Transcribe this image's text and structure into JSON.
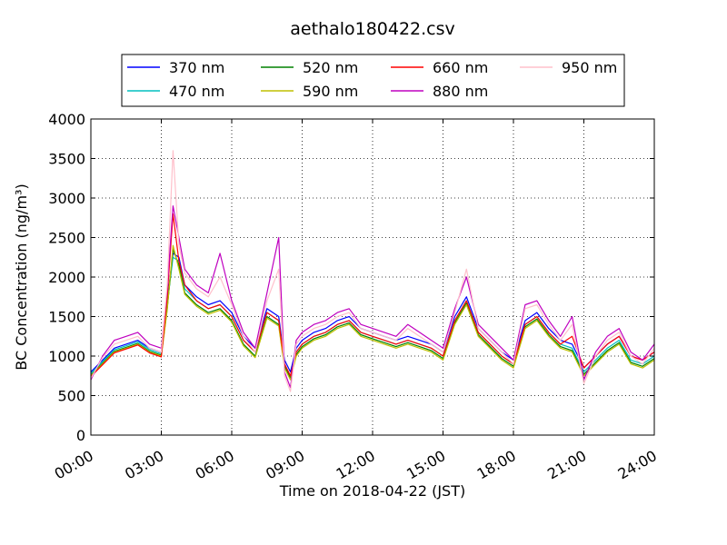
{
  "chart_data": {
    "type": "line",
    "title": "aethalo180422.csv",
    "xlabel": "Time on 2018-04-22 (JST)",
    "ylabel": "BC Concentration (ng/m³)",
    "xlim": [
      0,
      24
    ],
    "ylim": [
      0,
      4000
    ],
    "grid": true,
    "legend_position": "top",
    "x_ticks": [
      "00:00",
      "03:00",
      "06:00",
      "09:00",
      "12:00",
      "15:00",
      "18:00",
      "21:00",
      "24:00"
    ],
    "y_ticks": [
      "0",
      "500",
      "1000",
      "1500",
      "2000",
      "2500",
      "3000",
      "3500",
      "4000"
    ],
    "x": [
      0.0,
      0.5,
      1.0,
      1.5,
      2.0,
      2.5,
      3.0,
      3.25,
      3.5,
      3.75,
      4.0,
      4.5,
      5.0,
      5.5,
      6.0,
      6.5,
      7.0,
      7.5,
      8.0,
      8.25,
      8.5,
      8.75,
      9.0,
      9.5,
      10.0,
      10.5,
      11.0,
      11.5,
      12.0,
      12.5,
      13.0,
      13.5,
      14.0,
      14.5,
      15.0,
      15.5,
      16.0,
      16.5,
      17.0,
      17.5,
      18.0,
      18.5,
      19.0,
      19.5,
      20.0,
      20.5,
      21.0,
      21.5,
      22.0,
      22.5,
      23.0,
      23.5,
      24.0
    ],
    "series": [
      {
        "name": "370 nm",
        "color": "#0000ff",
        "values": [
          800,
          950,
          1100,
          1150,
          1200,
          1100,
          1050,
          1700,
          2300,
          2250,
          1900,
          1750,
          1650,
          1700,
          1550,
          1250,
          1100,
          1600,
          1500,
          950,
          800,
          1100,
          1200,
          1300,
          1350,
          1450,
          1500,
          1350,
          1300,
          1250,
          1200,
          1250,
          1200,
          1150,
          1050,
          1500,
          1750,
          1350,
          1200,
          1050,
          950,
          1450,
          1550,
          1350,
          1200,
          1150,
          850,
          1000,
          1150,
          1250,
          1000,
          950,
          1050
        ]
      },
      {
        "name": "470 nm",
        "color": "#00bfbf",
        "values": [
          780,
          930,
          1080,
          1130,
          1180,
          1080,
          1030,
          1650,
          2250,
          2200,
          1850,
          1700,
          1600,
          1650,
          1500,
          1200,
          1050,
          1550,
          1450,
          900,
          750,
          1050,
          1150,
          1250,
          1300,
          1400,
          1450,
          1300,
          1250,
          1200,
          1150,
          1200,
          1150,
          1100,
          1000,
          1450,
          1700,
          1300,
          1150,
          1000,
          900,
          1400,
          1500,
          1300,
          1150,
          1100,
          800,
          950,
          1100,
          1200,
          950,
          900,
          1000
        ]
      },
      {
        "name": "520 nm",
        "color": "#008000",
        "values": [
          760,
          910,
          1060,
          1110,
          1160,
          1060,
          1010,
          1600,
          2350,
          2150,
          1800,
          1650,
          1550,
          1600,
          1450,
          1150,
          1000,
          1500,
          1400,
          870,
          720,
          1020,
          1120,
          1220,
          1270,
          1370,
          1420,
          1270,
          1220,
          1170,
          1120,
          1170,
          1120,
          1070,
          970,
          1420,
          1670,
          1270,
          1120,
          970,
          870,
          1370,
          1470,
          1270,
          1120,
          1070,
          770,
          920,
          1070,
          1170,
          920,
          870,
          970
        ]
      },
      {
        "name": "590 nm",
        "color": "#bfbf00",
        "values": [
          750,
          900,
          1050,
          1100,
          1150,
          1050,
          1000,
          1580,
          2400,
          2100,
          1780,
          1630,
          1530,
          1580,
          1430,
          1130,
          980,
          1480,
          1380,
          850,
          700,
          1000,
          1100,
          1200,
          1250,
          1350,
          1400,
          1250,
          1200,
          1150,
          1100,
          1150,
          1100,
          1050,
          950,
          1400,
          1650,
          1250,
          1100,
          950,
          850,
          1350,
          1450,
          1250,
          1100,
          1050,
          750,
          900,
          1050,
          1150,
          900,
          850,
          950
        ]
      },
      {
        "name": "660 nm",
        "color": "#ff0000",
        "values": [
          740,
          890,
          1040,
          1090,
          1140,
          1040,
          990,
          1750,
          2800,
          2200,
          1900,
          1700,
          1600,
          1650,
          1500,
          1200,
          1050,
          1550,
          1450,
          900,
          750,
          1050,
          1150,
          1250,
          1300,
          1400,
          1450,
          1300,
          1250,
          1200,
          1150,
          1200,
          1150,
          1100,
          1000,
          1450,
          1700,
          1300,
          1150,
          1000,
          900,
          1400,
          1500,
          1300,
          1150,
          1250,
          850,
          1000,
          1150,
          1250,
          1000,
          950,
          1050
        ]
      },
      {
        "name": "880 nm",
        "color": "#bf00bf",
        "values": [
          700,
          1000,
          1200,
          1250,
          1300,
          1150,
          1100,
          1850,
          2900,
          2500,
          2100,
          1900,
          1800,
          2300,
          1700,
          1300,
          1100,
          1800,
          2500,
          800,
          600,
          1200,
          1300,
          1400,
          1450,
          1550,
          1600,
          1400,
          1350,
          1300,
          1250,
          1400,
          1300,
          1200,
          1100,
          1600,
          2000,
          1400,
          1250,
          1100,
          950,
          1650,
          1700,
          1450,
          1250,
          1500,
          700,
          1050,
          1250,
          1350,
          1050,
          950,
          1150
        ]
      },
      {
        "name": "950 nm",
        "color": "#ffc0cb",
        "values": [
          720,
          980,
          1150,
          1200,
          1250,
          1100,
          1050,
          1900,
          3600,
          2400,
          2050,
          1850,
          1750,
          2000,
          1650,
          1250,
          1050,
          1700,
          2100,
          750,
          550,
          1150,
          1250,
          1350,
          1400,
          1500,
          1550,
          1350,
          1300,
          1250,
          1200,
          1350,
          1250,
          1150,
          1050,
          1550,
          2100,
          1350,
          1200,
          1050,
          900,
          1600,
          1650,
          1400,
          1200,
          1400,
          650,
          1000,
          1200,
          1300,
          1000,
          900,
          1100
        ]
      }
    ]
  }
}
